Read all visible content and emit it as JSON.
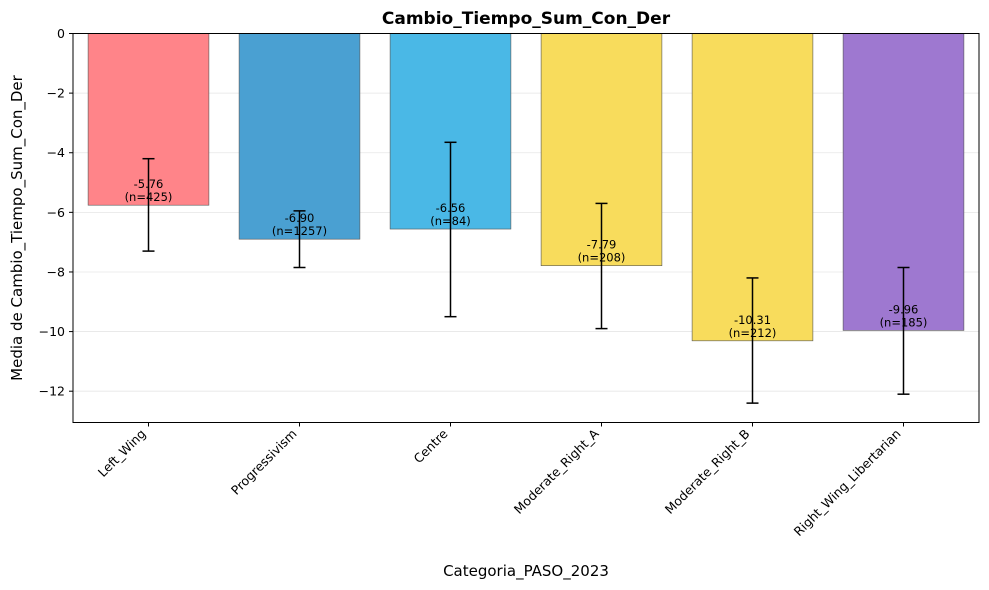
{
  "chart_data": {
    "type": "bar",
    "title": "Cambio_Tiempo_Sum_Con_Der",
    "xlabel": "Categoria_PASO_2023",
    "ylabel": "Media de Cambio_Tiempo_Sum_Con_Der",
    "ylim": [
      -13.05,
      0
    ],
    "yticks": [
      0,
      -2,
      -4,
      -6,
      -8,
      -10,
      -12
    ],
    "ytick_labels": [
      "0",
      "−2",
      "−4",
      "−6",
      "−8",
      "−10",
      "−12"
    ],
    "grid": "horizontal",
    "categories": [
      "Left_Wing",
      "Progressivism",
      "Centre",
      "Moderate_Right_A",
      "Moderate_Right_B",
      "Right_Wing_Libertarian"
    ],
    "values": [
      -5.76,
      -6.9,
      -6.56,
      -7.79,
      -10.31,
      -9.96
    ],
    "error_low": [
      -7.3,
      -7.85,
      -9.5,
      -9.9,
      -12.4,
      -12.1
    ],
    "error_high": [
      -4.2,
      -5.95,
      -3.65,
      -5.7,
      -8.2,
      -7.85
    ],
    "counts": [
      425,
      1257,
      84,
      208,
      212,
      185
    ],
    "value_labels": [
      "-5.76",
      "-6.90",
      "-6.56",
      "-7.79",
      "-10.31",
      "-9.96"
    ],
    "count_labels": [
      "(n=425)",
      "(n=1257)",
      "(n=84)",
      "(n=208)",
      "(n=212)",
      "(n=185)"
    ],
    "colors": [
      "#ff8489",
      "#4aa0d2",
      "#4ab8e6",
      "#f8dc5c",
      "#f8dc5c",
      "#9e78d0"
    ]
  }
}
